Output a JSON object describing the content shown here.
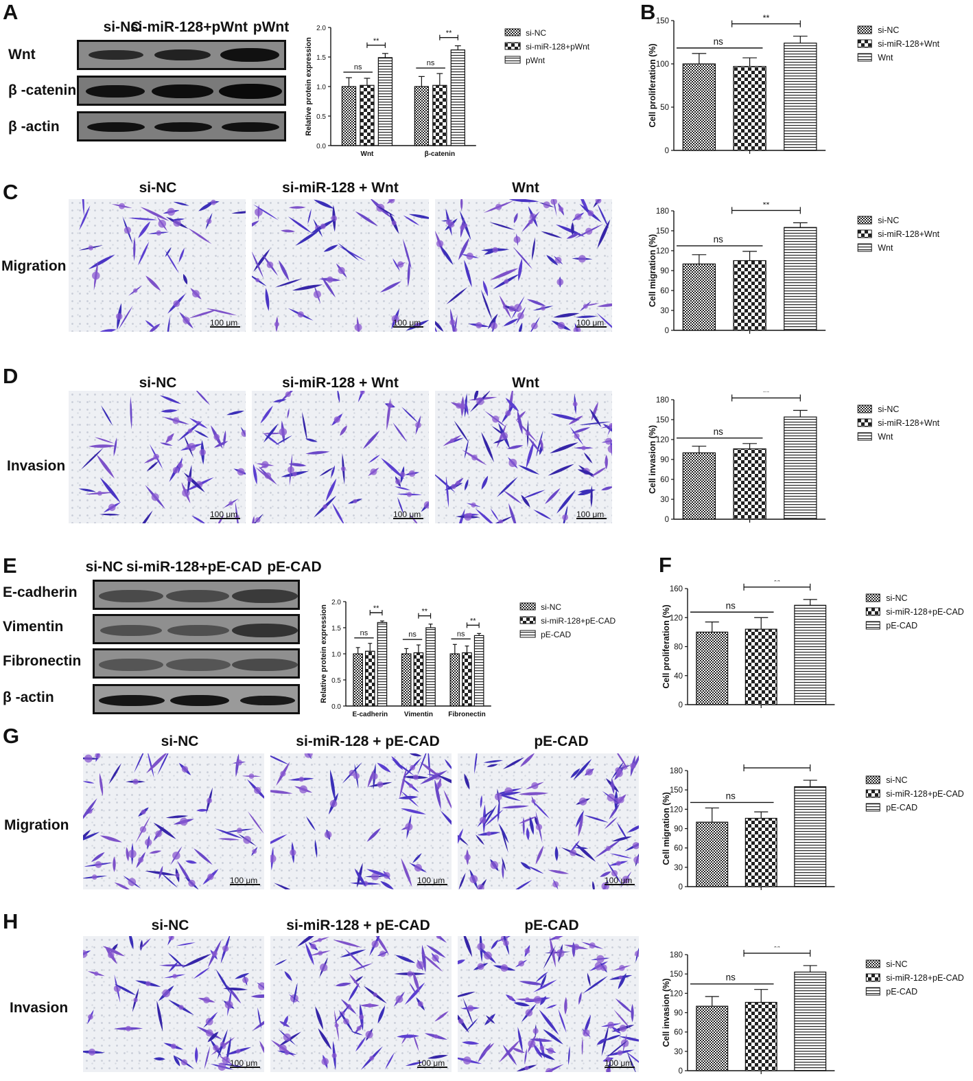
{
  "panel_letters": {
    "A": "A",
    "B": "B",
    "C": "C",
    "D": "D",
    "E": "E",
    "F": "F",
    "G": "G",
    "H": "H"
  },
  "panelA": {
    "lane_headers": [
      "si-NC",
      "si-miR-128+pWnt",
      "pWnt"
    ],
    "blot_rows": [
      "Wnt",
      "β -catenin",
      "β -actin"
    ]
  },
  "panelC": {
    "col_headers": [
      "si-NC",
      "si-miR-128 + Wnt",
      "Wnt"
    ],
    "row_label": "Migration",
    "scale": "100 μm"
  },
  "panelD": {
    "col_headers": [
      "si-NC",
      "si-miR-128 + Wnt",
      "Wnt"
    ],
    "row_label": "Invasion",
    "scale": "100 μm"
  },
  "panelE": {
    "lane_headers": [
      "si-NC",
      "si-miR-128+pE-CAD",
      "pE-CAD"
    ],
    "blot_rows": [
      "E-cadherin",
      "Vimentin",
      "Fibronectin",
      "β -actin"
    ]
  },
  "panelG": {
    "col_headers": [
      "si-NC",
      "si-miR-128 + pE-CAD",
      "pE-CAD"
    ],
    "row_label": "Migration",
    "scale": "100 μm"
  },
  "panelH": {
    "col_headers": [
      "si-NC",
      "si-miR-128 + pE-CAD",
      "pE-CAD"
    ],
    "row_label": "Invasion",
    "scale": "100 μm"
  },
  "chart_data": [
    {
      "id": "A-chart",
      "type": "bar",
      "ylabel": "Relative protein expression",
      "ylim": [
        0,
        2.0
      ],
      "yticks": [
        "0.0",
        "0.5",
        "1.0",
        "1.5",
        "2.0"
      ],
      "categories": [
        "Wnt",
        "β-catenin"
      ],
      "series": [
        {
          "name": "si-NC",
          "pattern": "dense",
          "values": [
            1.0,
            1.0
          ],
          "errors": [
            0.15,
            0.17
          ]
        },
        {
          "name": "si-miR-128+pWnt",
          "pattern": "check",
          "values": [
            1.02,
            1.02
          ],
          "errors": [
            0.12,
            0.2
          ]
        },
        {
          "name": "pWnt",
          "pattern": "hlines",
          "values": [
            1.49,
            1.62
          ],
          "errors": [
            0.07,
            0.07
          ]
        }
      ],
      "annotations": [
        "ns",
        "**",
        "ns",
        "**"
      ],
      "legend_position": "right"
    },
    {
      "id": "B-chart",
      "type": "bar",
      "ylabel": "Cell proliferation (%)",
      "ylim": [
        0,
        150
      ],
      "yticks": [
        "0",
        "50",
        "100",
        "150"
      ],
      "categories": [
        "si-NC",
        "si-miR-128+Wnt",
        "Wnt"
      ],
      "values": [
        100,
        97,
        124
      ],
      "errors": [
        12,
        10,
        8
      ],
      "patterns": [
        "dense",
        "check",
        "hlines"
      ],
      "legend": [
        "si-NC",
        "si-miR-128+Wnt",
        "Wnt"
      ],
      "annotations": [
        "ns",
        "**"
      ],
      "legend_position": "right"
    },
    {
      "id": "C-chart",
      "type": "bar",
      "ylabel": "Cell migration (%)",
      "ylim": [
        0,
        180
      ],
      "yticks": [
        "0",
        "30",
        "60",
        "90",
        "120",
        "150",
        "180"
      ],
      "categories": [
        "si-NC",
        "si-miR-128+Wnt",
        "Wnt"
      ],
      "values": [
        100,
        105,
        155
      ],
      "errors": [
        14,
        14,
        7
      ],
      "patterns": [
        "dense",
        "check",
        "hlines"
      ],
      "legend": [
        "si-NC",
        "si-miR-128+Wnt",
        "Wnt"
      ],
      "annotations": [
        "ns",
        "**"
      ],
      "legend_position": "right"
    },
    {
      "id": "D-chart",
      "type": "bar",
      "ylabel": "Cell invasion (%)",
      "ylim": [
        0,
        180
      ],
      "yticks": [
        "0",
        "30",
        "60",
        "90",
        "120",
        "150",
        "180"
      ],
      "categories": [
        "si-NC",
        "si-miR-128+Wnt",
        "Wnt"
      ],
      "values": [
        100,
        106,
        154
      ],
      "errors": [
        10,
        8,
        10
      ],
      "patterns": [
        "dense",
        "check",
        "hlines"
      ],
      "legend": [
        "si-NC",
        "si-miR-128+Wnt",
        "Wnt"
      ],
      "annotations": [
        "ns",
        "**"
      ],
      "legend_position": "right"
    },
    {
      "id": "E-chart",
      "type": "bar",
      "ylabel": "Relative protein expression",
      "ylim": [
        0,
        2.0
      ],
      "yticks": [
        "0.0",
        "0.5",
        "1.0",
        "1.5",
        "2.0"
      ],
      "categories": [
        "E-cadherin",
        "Vimentin",
        "Fibronectin"
      ],
      "series": [
        {
          "name": "si-NC",
          "pattern": "dense",
          "values": [
            1.0,
            1.0,
            1.0
          ],
          "errors": [
            0.12,
            0.1,
            0.18
          ]
        },
        {
          "name": "si-miR-128+pE-CAD",
          "pattern": "check",
          "values": [
            1.05,
            1.02,
            1.02
          ],
          "errors": [
            0.15,
            0.15,
            0.13
          ]
        },
        {
          "name": "pE-CAD",
          "pattern": "hlines",
          "values": [
            1.6,
            1.5,
            1.35
          ],
          "errors": [
            0.03,
            0.07,
            0.04
          ]
        }
      ],
      "annotations": [
        "ns",
        "**",
        "ns",
        "**",
        "ns",
        "**"
      ],
      "legend_position": "right"
    },
    {
      "id": "F-chart",
      "type": "bar",
      "ylabel": "Cell proliferation (%)",
      "ylim": [
        0,
        160
      ],
      "yticks": [
        "0",
        "40",
        "80",
        "120",
        "160"
      ],
      "categories": [
        "si-NC",
        "si-miR-128+pE-CAD",
        "pE-CAD"
      ],
      "values": [
        100,
        104,
        137
      ],
      "errors": [
        14,
        16,
        8
      ],
      "patterns": [
        "dense",
        "check",
        "hlines"
      ],
      "legend": [
        "si-NC",
        "si-miR-128+pE-CAD",
        "pE-CAD"
      ],
      "annotations": [
        "ns",
        "**"
      ],
      "legend_position": "right"
    },
    {
      "id": "G-chart",
      "type": "bar",
      "ylabel": "Cell migration (%)",
      "ylim": [
        0,
        180
      ],
      "yticks": [
        "0",
        "30",
        "60",
        "90",
        "120",
        "150",
        "180"
      ],
      "categories": [
        "si-NC",
        "si-miR-128+pE-CAD",
        "pE-CAD"
      ],
      "values": [
        100,
        106,
        155
      ],
      "errors": [
        22,
        10,
        10
      ],
      "patterns": [
        "dense",
        "check",
        "hlines"
      ],
      "legend": [
        "si-NC",
        "si-miR-128+pE-CAD",
        "pE-CAD"
      ],
      "annotations": [
        "ns",
        "**"
      ],
      "legend_position": "right"
    },
    {
      "id": "H-chart",
      "type": "bar",
      "ylabel": "Cell invasion (%)",
      "ylim": [
        0,
        180
      ],
      "yticks": [
        "0",
        "30",
        "60",
        "90",
        "120",
        "150",
        "180"
      ],
      "categories": [
        "si-NC",
        "si-miR-128+pE-CAD",
        "pE-CAD"
      ],
      "values": [
        100,
        106,
        153
      ],
      "errors": [
        15,
        20,
        10
      ],
      "patterns": [
        "dense",
        "check",
        "hlines"
      ],
      "legend": [
        "si-NC",
        "si-miR-128+pE-CAD",
        "pE-CAD"
      ],
      "annotations": [
        "ns",
        "**"
      ],
      "legend_position": "right"
    }
  ]
}
